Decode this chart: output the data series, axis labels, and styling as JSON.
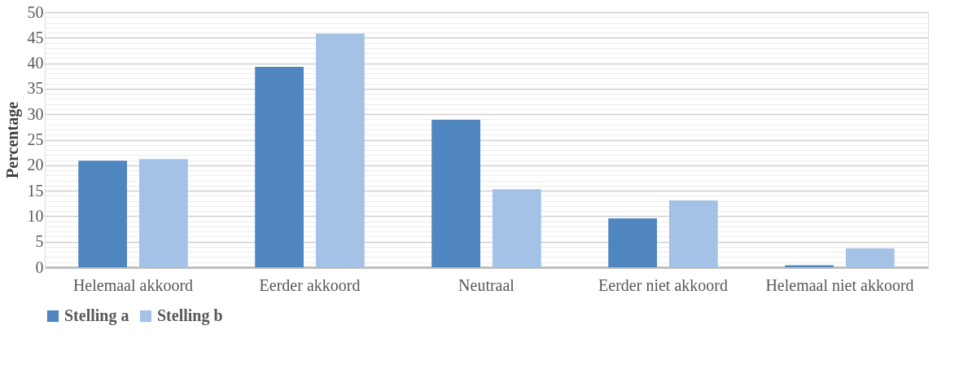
{
  "chart_data": {
    "type": "bar",
    "ylabel": "Percentage",
    "categories": [
      "Helemaal akkoord",
      "Eerder akkoord",
      "Neutraal",
      "Eerder niet akkoord",
      "Helemaal niet akkoord"
    ],
    "series": [
      {
        "name": "Stelling a",
        "color": "#4f86c0",
        "values": [
          20.9,
          39.3,
          28.9,
          9.6,
          0.4
        ]
      },
      {
        "name": "Stelling b",
        "color": "#a4c2e6",
        "values": [
          21.2,
          45.8,
          15.3,
          13.1,
          3.7
        ]
      }
    ],
    "ylim": [
      0,
      50
    ],
    "yticks": [
      0,
      {
        "value": 1,
        "label": null
      },
      {
        "value": 2,
        "label": null
      },
      {
        "value": 3,
        "label": null
      },
      {
        "value": 4,
        "label": null
      },
      5,
      {
        "value": 6,
        "label": null
      },
      {
        "value": 7,
        "label": null
      },
      {
        "value": 8,
        "label": null
      },
      {
        "value": 9,
        "label": null
      },
      10,
      {
        "value": 11,
        "label": null
      },
      {
        "value": 12,
        "label": null
      },
      {
        "value": 13,
        "label": null
      },
      {
        "value": 14,
        "label": null
      },
      15,
      {
        "value": 16,
        "label": null
      },
      {
        "value": 17,
        "label": null
      },
      {
        "value": 18,
        "label": null
      },
      {
        "value": 19,
        "label": null
      },
      20,
      {
        "value": 21,
        "label": null
      },
      {
        "value": 22,
        "label": null
      },
      {
        "value": 23,
        "label": null
      },
      {
        "value": 24,
        "label": null
      },
      25,
      {
        "value": 26,
        "label": null
      },
      {
        "value": 27,
        "label": null
      },
      {
        "value": 28,
        "label": null
      },
      {
        "value": 29,
        "label": null
      },
      30,
      {
        "value": 31,
        "label": null
      },
      {
        "value": 32,
        "label": null
      },
      {
        "value": 33,
        "label": null
      },
      {
        "value": 34,
        "label": null
      },
      35,
      {
        "value": 36,
        "label": null
      },
      {
        "value": 37,
        "label": null
      },
      {
        "value": 38,
        "label": null
      },
      {
        "value": 39,
        "label": null
      },
      40,
      {
        "value": 41,
        "label": null
      },
      {
        "value": 42,
        "label": null
      },
      {
        "value": 43,
        "label": null
      },
      {
        "value": 44,
        "label": null
      },
      45,
      {
        "value": 46,
        "label": null
      },
      {
        "value": 47,
        "label": null
      },
      {
        "value": 48,
        "label": null
      },
      {
        "value": 49,
        "label": null
      },
      50
    ],
    "grid": "y",
    "legend": "bottom"
  }
}
